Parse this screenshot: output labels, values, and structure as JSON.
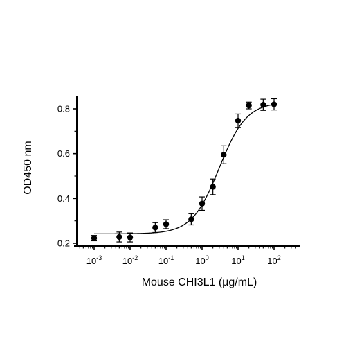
{
  "chart_data": {
    "type": "scatter",
    "title": "",
    "xlabel": "Mouse CHI3L1 (μg/mL)",
    "ylabel": "OD450 nm",
    "xscale": "log",
    "xlim": [
      0.0004,
      300
    ],
    "ylim": [
      0.2,
      0.85
    ],
    "x_ticks": [
      {
        "base": "10",
        "exp": "-3",
        "value": 0.001
      },
      {
        "base": "10",
        "exp": "-2",
        "value": 0.01
      },
      {
        "base": "10",
        "exp": "-1",
        "value": 0.1
      },
      {
        "base": "10",
        "exp": "0",
        "value": 1
      },
      {
        "base": "10",
        "exp": "1",
        "value": 10
      },
      {
        "base": "10",
        "exp": "2",
        "value": 100
      }
    ],
    "y_ticks": [
      {
        "label": "0.2",
        "value": 0.2
      },
      {
        "label": "0.4",
        "value": 0.4
      },
      {
        "label": "0.6",
        "value": 0.6
      },
      {
        "label": "0.8",
        "value": 0.8
      }
    ],
    "grid": false,
    "legend": "none",
    "colors": {
      "points": "#000000",
      "curve": "#000000",
      "axis": "#000000"
    },
    "series": [
      {
        "x": [
          0.001,
          0.005,
          0.01,
          0.05,
          0.1,
          0.5,
          1,
          2,
          4,
          10,
          20,
          50,
          100
        ],
        "y": [
          0.223,
          0.228,
          0.226,
          0.27,
          0.285,
          0.307,
          0.377,
          0.452,
          0.595,
          0.747,
          0.815,
          0.818,
          0.82
        ],
        "error": [
          0.012,
          0.022,
          0.02,
          0.022,
          0.02,
          0.025,
          0.03,
          0.035,
          0.04,
          0.03,
          0.015,
          0.025,
          0.025
        ]
      }
    ],
    "fit_curve": {
      "model": "4PL",
      "bottom": 0.242,
      "top": 0.83,
      "ec50": 3.0,
      "hill": 1.15
    }
  }
}
